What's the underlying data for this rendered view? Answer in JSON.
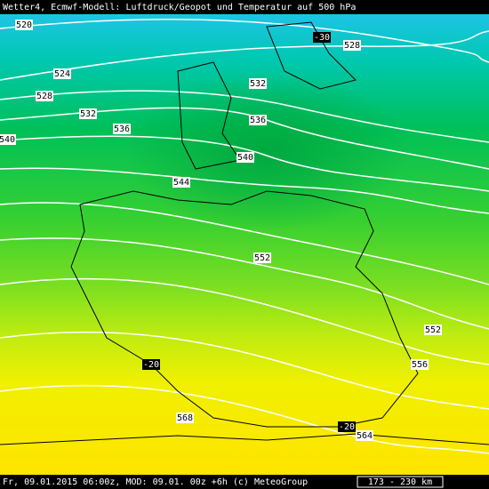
{
  "header": {
    "title": "Wetter4, Ecmwf-Modell: Luftdruck/Geopot und Temperatur auf 500 hPa"
  },
  "contours": [
    "520",
    "524",
    "528",
    "528",
    "532",
    "532",
    "536",
    "536",
    "540",
    "540",
    "544",
    "552",
    "552",
    "556",
    "564",
    "568"
  ],
  "temperatures": [
    "-30",
    "-20",
    "-20"
  ],
  "footer": {
    "text": "Fr, 09.01.2015 06:00z, MOD: 09.01. 00z +6h (c) MeteoGroup",
    "scale": "173 - 230 km"
  }
}
